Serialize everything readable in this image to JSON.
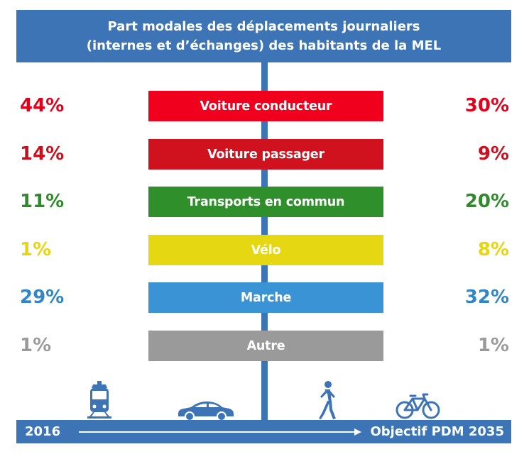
{
  "header": {
    "title_line1": "Part modales des déplacements journaliers",
    "title_line2": "(internes et d’échanges) des habitants de la MEL"
  },
  "footer": {
    "start_label": "2016",
    "end_label": "Objectif PDM 2035"
  },
  "icons": [
    "tram-icon",
    "car-icon",
    "pedestrian-icon",
    "bicycle-icon"
  ],
  "chart_data": {
    "type": "table",
    "title": "Part modales des déplacements journaliers (internes et d’échanges) des habitants de la MEL",
    "columns": [
      "2016",
      "Objectif PDM 2035"
    ],
    "rows": [
      {
        "mode": "Voiture conducteur",
        "value_2016": "44%",
        "value_2035": "30%",
        "color": "#f0001c",
        "text_color": "#e2001a"
      },
      {
        "mode": "Voiture passager",
        "value_2016": "14%",
        "value_2035": "9%",
        "color": "#d0111e",
        "text_color": "#c8101e"
      },
      {
        "mode": "Transports en commun",
        "value_2016": "11%",
        "value_2035": "20%",
        "color": "#2f8f2b",
        "text_color": "#2e8b2a"
      },
      {
        "mode": "Vélo",
        "value_2016": "1%",
        "value_2035": "8%",
        "color": "#e6d713",
        "text_color": "#e8d40f"
      },
      {
        "mode": "Marche",
        "value_2016": "29%",
        "value_2035": "32%",
        "color": "#3a93d5",
        "text_color": "#2f86c8"
      },
      {
        "mode": "Autre",
        "value_2016": "1%",
        "value_2035": "1%",
        "color": "#9a9a9a",
        "text_color": "#9a9a9a"
      }
    ]
  }
}
